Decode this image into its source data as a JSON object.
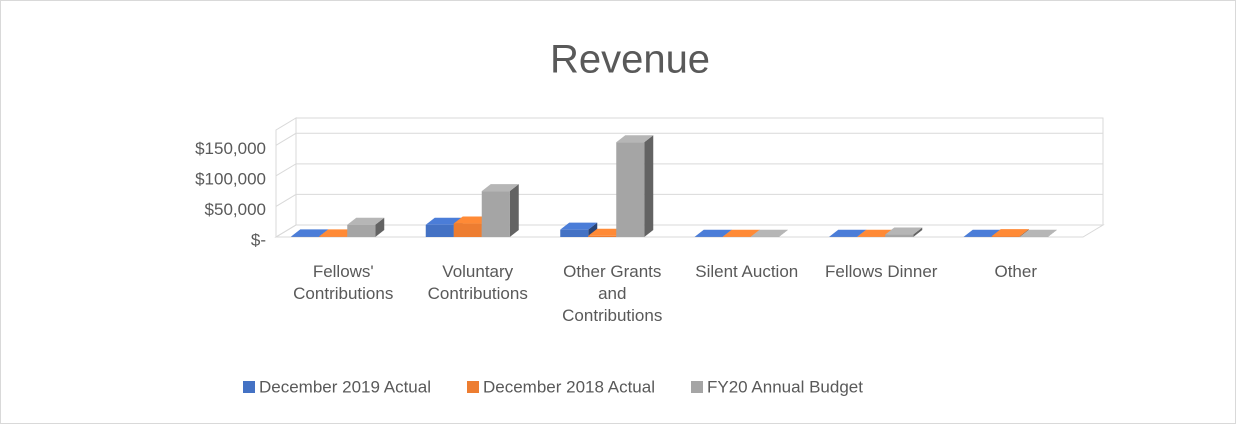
{
  "chart_data": {
    "type": "bar3d",
    "title": "Revenue",
    "categories": [
      "Fellows' Contributions",
      "Voluntary Contributions",
      "Other Grants and Contributions",
      "Silent Auction",
      "Fellows Dinner",
      "Other"
    ],
    "series": [
      {
        "name": "December 2019 Actual",
        "color": "#4472c4",
        "values": [
          1000,
          20000,
          12000,
          500,
          500,
          500
        ]
      },
      {
        "name": "December 2018 Actual",
        "color": "#ed7d31",
        "values": [
          1000,
          22000,
          2000,
          500,
          500,
          1500
        ]
      },
      {
        "name": "FY20 Annual Budget",
        "color": "#a5a5a5",
        "values": [
          20000,
          75000,
          155000,
          500,
          4000,
          500
        ]
      }
    ],
    "ylim": [
      0,
      175000
    ],
    "yticks": [
      {
        "value": 0,
        "label": "$-"
      },
      {
        "value": 50000,
        "label": "$50,000"
      },
      {
        "value": 100000,
        "label": "$100,000"
      },
      {
        "value": 150000,
        "label": "$150,000"
      }
    ],
    "grid": true,
    "legend": "bottom"
  }
}
